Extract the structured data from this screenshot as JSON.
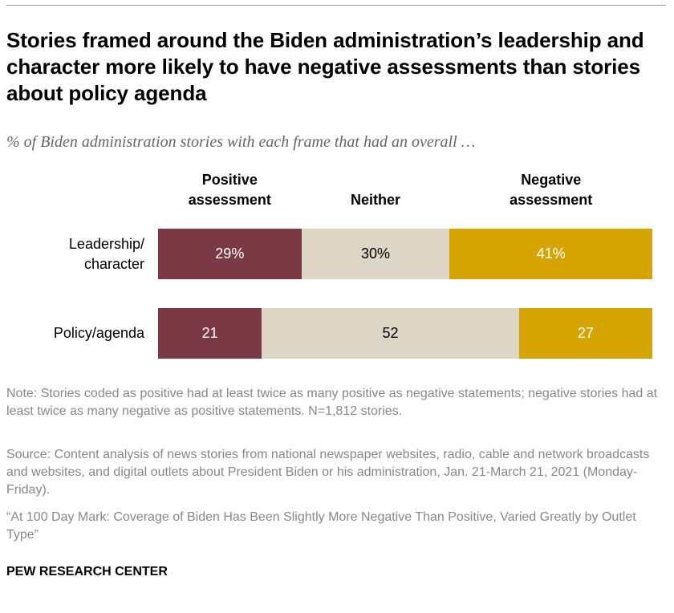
{
  "chart_data": {
    "type": "stacked-bar",
    "title": "Stories framed around the Biden administration’s leadership and character more likely to have negative assessments than stories about policy agenda",
    "subtitle": "% of Biden administration stories with each frame that had an overall …",
    "categories": [
      "Leadership/\ncharacter",
      "Policy/agenda"
    ],
    "xlim": [
      0,
      100
    ],
    "series": [
      {
        "name": "Positive\nassessment",
        "color": "#7b3845",
        "values": [
          29,
          21
        ],
        "value_labels": [
          "29%",
          "21"
        ]
      },
      {
        "name": "Neither",
        "color": "#ddd5c5",
        "values": [
          30,
          52
        ],
        "value_labels": [
          "30%",
          "52"
        ]
      },
      {
        "name": "Negative\nassessment",
        "color": "#d6a400",
        "values": [
          41,
          27
        ],
        "value_labels": [
          "41%",
          "27"
        ]
      }
    ],
    "note": "Note: Stories coded as positive had at least twice as many positive as negative statements; negative stories had at least twice as many negative as positive statements. N=1,812 stories.",
    "source": "Source: Content analysis of news stories from national newspaper websites, radio, cable and network broadcasts and websites, and digital outlets about President Biden or his administration, Jan. 21-March 21, 2021 (Monday-Friday).",
    "citation": "“At 100 Day Mark: Coverage of Biden Has Been Slightly More Negative Than Positive, Varied Greatly by Outlet Type”",
    "footer": "PEW RESEARCH CENTER"
  }
}
